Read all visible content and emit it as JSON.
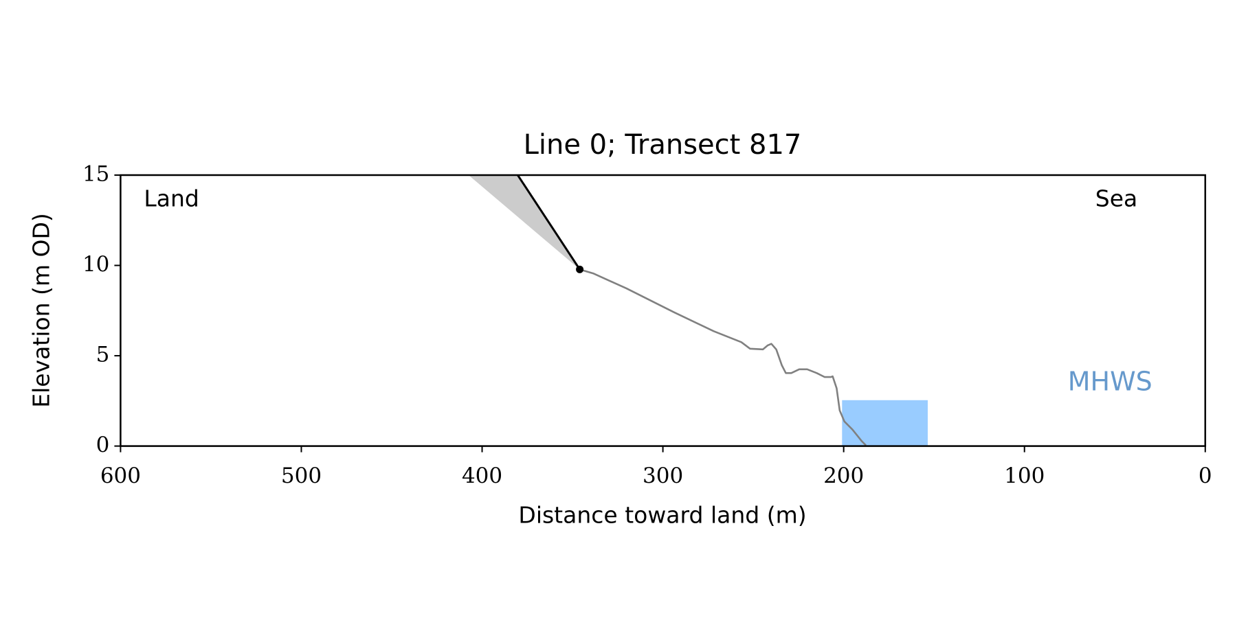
{
  "chart_data": {
    "type": "line",
    "title": "Line 0; Transect 817",
    "xlabel": "Distance toward land (m)",
    "ylabel": "Elevation (m OD)",
    "xlim": [
      600,
      0
    ],
    "ylim": [
      0,
      15
    ],
    "xticks": [
      600,
      500,
      400,
      300,
      200,
      100,
      0
    ],
    "yticks": [
      0,
      5,
      10,
      15
    ],
    "series": [
      {
        "color": "#808080",
        "x": [
          346,
          338.6,
          320.2,
          293.9,
          271.9,
          256.6,
          251.8,
          244.7,
          242.1,
          240,
          237.3,
          234.2,
          232,
          229,
          224.6,
          220.2,
          214.9,
          210.5,
          207,
          206.1,
          203.9,
          202.2,
          199.6,
          195.2,
          189.9,
          187.7
        ],
        "values": [
          9.78,
          9.56,
          8.73,
          7.41,
          6.36,
          5.75,
          5.39,
          5.35,
          5.57,
          5.66,
          5.35,
          4.47,
          4.04,
          4.04,
          4.25,
          4.25,
          4.04,
          3.82,
          3.82,
          3.86,
          3.2,
          1.97,
          1.36,
          0.92,
          0.26,
          0.04
        ]
      },
      {
        "color": "#000000",
        "x": [
          346,
          380.3
        ],
        "values": [
          9.78,
          15
        ]
      }
    ],
    "point": {
      "x": 346,
      "y": 9.78,
      "color": "#000000"
    },
    "shade": {
      "color": "#cccccc",
      "x": [
        407.5,
        380.3,
        346
      ],
      "values": [
        15,
        15,
        9.78
      ]
    },
    "band": {
      "color": "#99ccff",
      "x": [
        200.9,
        153.5
      ],
      "values": [
        0,
        2.54
      ]
    },
    "annotations": [
      "Land",
      "Sea"
    ],
    "band_label": {
      "text": "MHWS",
      "color": "#6699cc"
    }
  }
}
